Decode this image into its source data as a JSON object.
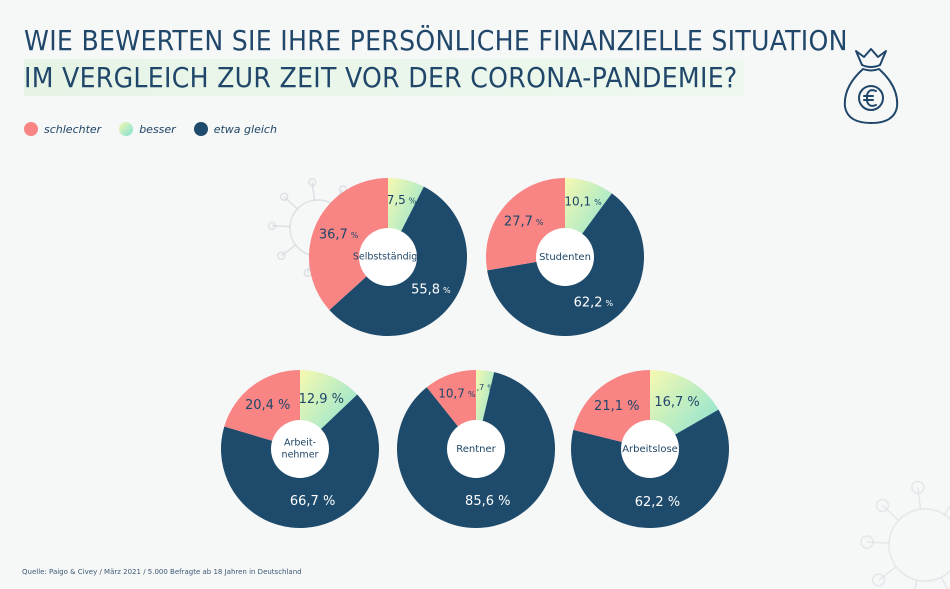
{
  "title_line1": "WIE BEWERTEN SIE IHRE PERSÖNLICHE FINANZIELLE SITUATION",
  "title_line2": "IM VERGLEICH ZUR ZEIT VOR DER CORONA-PANDEMIE?",
  "source": "Quelle: Paigo & Civey / März 2021 / 5.000 Befragte ab 18 Jahren in Deutschland",
  "icons": [
    "money-bag-euro-icon",
    "virus-decoration-icon"
  ],
  "colors": {
    "schlechter": "#f98484",
    "besser": "#7fe0d6",
    "etwa_gleich": "#1e4b6b"
  },
  "chart_data": {
    "type": "donut",
    "legend": [
      "schlechter",
      "besser",
      "etwa gleich"
    ],
    "legend_position": "top-left",
    "unit": "%",
    "charts": [
      {
        "group": "Selbstständige",
        "slices": [
          {
            "series": "besser",
            "value": 7.5,
            "label": "7,5"
          },
          {
            "series": "etwa gleich",
            "value": 55.8,
            "label": "55,8"
          },
          {
            "series": "schlechter",
            "value": 36.7,
            "label": "36,7"
          }
        ]
      },
      {
        "group": "Studenten",
        "slices": [
          {
            "series": "besser",
            "value": 10.1,
            "label": "10,1"
          },
          {
            "series": "etwa gleich",
            "value": 62.2,
            "label": "62,2"
          },
          {
            "series": "schlechter",
            "value": 27.7,
            "label": "27,7"
          }
        ]
      },
      {
        "group": "Arbeit-\nnehmer",
        "slices": [
          {
            "series": "besser",
            "value": 12.9,
            "label": "12,9 %"
          },
          {
            "series": "etwa gleich",
            "value": 66.7,
            "label": "66,7 %"
          },
          {
            "series": "schlechter",
            "value": 20.4,
            "label": "20,4 %"
          }
        ]
      },
      {
        "group": "Rentner",
        "slices": [
          {
            "series": "besser",
            "value": 3.7,
            "label": "3,7"
          },
          {
            "series": "etwa gleich",
            "value": 85.6,
            "label": "85,6 %"
          },
          {
            "series": "schlechter",
            "value": 10.7,
            "label": "10,7"
          }
        ]
      },
      {
        "group": "Arbeitslose",
        "slices": [
          {
            "series": "besser",
            "value": 16.7,
            "label": "16,7 %"
          },
          {
            "series": "etwa gleich",
            "value": 62.2,
            "label": "62,2 %"
          },
          {
            "series": "schlechter",
            "value": 21.1,
            "label": "21,1 %"
          }
        ]
      }
    ]
  }
}
